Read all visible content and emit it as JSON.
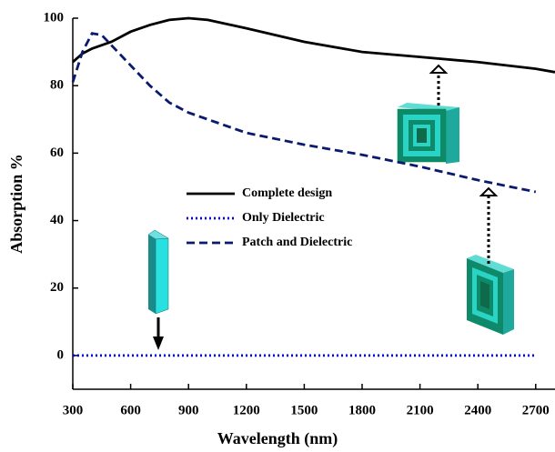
{
  "chart_data": {
    "type": "line",
    "x_label": "Wavelength (nm)",
    "y_label": "Absorption %",
    "x": [
      300,
      350,
      400,
      450,
      500,
      600,
      700,
      800,
      900,
      1000,
      1200,
      1500,
      1800,
      2100,
      2400,
      2700,
      2800
    ],
    "series": [
      {
        "name": "Complete design",
        "color": "#000000",
        "dash": "solid",
        "values": [
          87,
          89.5,
          91,
          92,
          93,
          96,
          98,
          99.5,
          100,
          99.5,
          97,
          93,
          90,
          88.5,
          87,
          85,
          84
        ]
      },
      {
        "name": "Only Dielectric",
        "color": "#0000ee",
        "dash": "dot",
        "values": [
          0,
          0,
          0,
          0,
          0,
          0,
          0,
          0,
          0,
          0,
          0,
          0,
          0,
          0,
          0,
          0,
          null
        ]
      },
      {
        "name": "Patch and Dielectric",
        "color": "#0a1a6e",
        "dash": "dash",
        "values": [
          81,
          90,
          95.5,
          95,
          92,
          86,
          80,
          75,
          72,
          70,
          66,
          62.5,
          59.5,
          56,
          52,
          48.5,
          null
        ]
      }
    ],
    "xlim": [
      300,
      2800
    ],
    "ylim": [
      -10,
      100
    ],
    "xticks": [
      300,
      600,
      900,
      1200,
      1500,
      1800,
      2100,
      2400,
      2700
    ],
    "yticks": [
      0,
      20,
      40,
      60,
      80,
      100
    ]
  }
}
